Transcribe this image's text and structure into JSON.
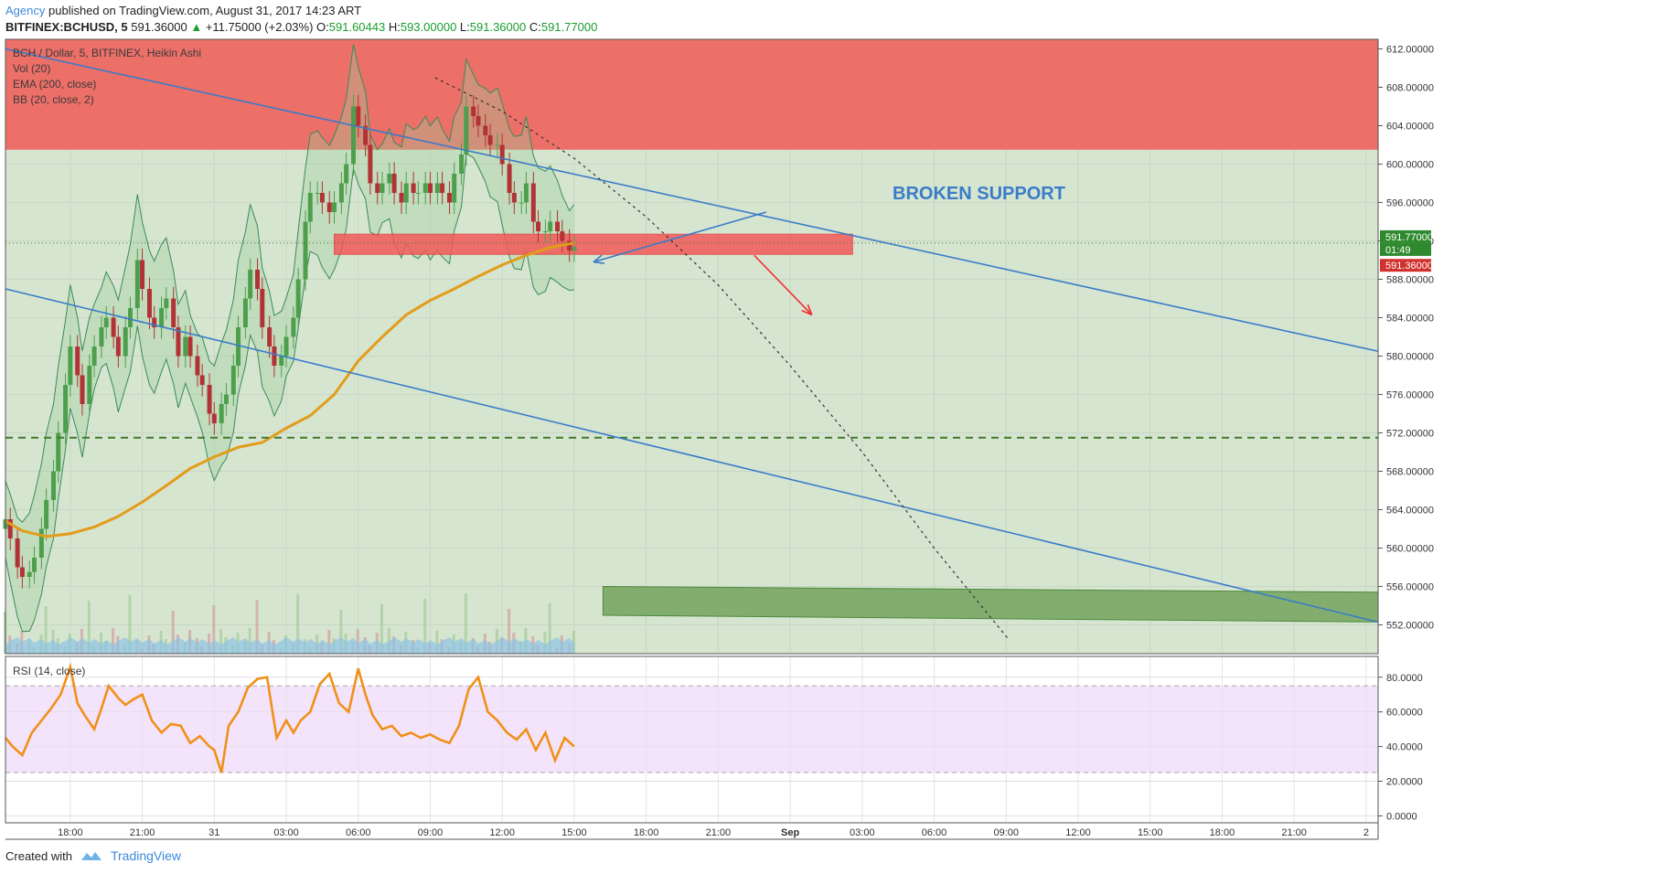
{
  "header": {
    "author": "Agency",
    "published": "published on TradingView.com, August 31, 2017 14:23 ART",
    "symbol": "BITFINEX:BCHUSD, 5",
    "last": "591.36000",
    "change": "+11.75000 (+2.03%)",
    "o_label": "O:",
    "o": "591.60443",
    "h_label": "H:",
    "h": "593.00000",
    "l_label": "L:",
    "l": "591.36000",
    "c_label": "C:",
    "c": "591.77000"
  },
  "legend": [
    "BCH / Dollar, 5, BITFINEX, Heikin Ashi",
    "Vol (20)",
    "EMA (200, close)",
    "BB (20, close, 2)"
  ],
  "rsi_label": "RSI (14, close)",
  "annotation": "BROKEN SUPPORT",
  "price_tags": {
    "close": "591.77000",
    "countdown": "01:49",
    "last": "591.36000"
  },
  "footer": {
    "created_with": "Created with",
    "brand": "TradingView"
  },
  "colors": {
    "resistance_zone": "#ec6f68",
    "support_zone": "#5a9a4a",
    "trendline": "#3a7cc8",
    "ema": "#e39c1a",
    "rsi_line": "#f19019",
    "rsi_band": "#f3e4fb",
    "bull": "#4d9f4d",
    "bear": "#b23236",
    "arrow": "#f32c2c"
  },
  "chart_data": {
    "type": "candlestick",
    "price_axis": {
      "ylim": [
        549.0,
        613.0
      ],
      "ticks": [
        552,
        556,
        560,
        564,
        568,
        572,
        576,
        580,
        584,
        588,
        592,
        596,
        600,
        604,
        608,
        612
      ],
      "tick_labels": [
        "552.00000",
        "556.00000",
        "560.00000",
        "564.00000",
        "568.00000",
        "572.00000",
        "576.00000",
        "580.00000",
        "584.00000",
        "588.00000",
        "592.00000",
        "596.00000",
        "600.00000",
        "604.00000",
        "608.00000",
        "612.00000"
      ]
    },
    "time_axis": {
      "labels": [
        "18:00",
        "21:00",
        "31",
        "03:00",
        "06:00",
        "09:00",
        "12:00",
        "15:00",
        "18:00",
        "21:00",
        "Sep",
        "03:00",
        "06:00",
        "09:00",
        "12:00",
        "15:00",
        "18:00",
        "21:00",
        "2"
      ],
      "hours": [
        18,
        21,
        24,
        27,
        30,
        33,
        36,
        39,
        42,
        45,
        48,
        51,
        54,
        57,
        60,
        63,
        66,
        69,
        72
      ],
      "xlim": [
        15.3,
        72.5
      ]
    },
    "zones": [
      {
        "name": "resistance",
        "x": [
          15.3,
          72.5
        ],
        "y": [
          601.5,
          613.0
        ]
      },
      {
        "name": "broken-support",
        "x": [
          29.0,
          50.6
        ],
        "y": [
          590.6,
          592.7
        ]
      },
      {
        "name": "target",
        "x_start": 40.2,
        "x_end": 72.5,
        "y_top_start": 556.0,
        "y_bot_start": 553.0,
        "y_top_end": 555.4,
        "y_bot_end": 552.3
      }
    ],
    "trendlines": [
      {
        "name": "upper-trendline",
        "from": [
          15.3,
          612.0
        ],
        "to": [
          72.5,
          580.5
        ],
        "dashed": false
      },
      {
        "name": "lower-trendline",
        "from": [
          15.3,
          587.0
        ],
        "to": [
          72.5,
          552.3
        ],
        "dashed": false
      },
      {
        "name": "curve-projection",
        "points": [
          [
            33.2,
            609.0
          ],
          [
            36,
            605.5
          ],
          [
            39,
            600.6
          ],
          [
            42,
            594.5
          ],
          [
            45,
            587.4
          ],
          [
            48,
            579.0
          ],
          [
            51,
            570.0
          ],
          [
            54,
            560.0
          ],
          [
            57.1,
            550.5
          ]
        ],
        "dashed": true
      }
    ],
    "hlines": [
      {
        "name": "support-level",
        "y": 571.5,
        "dashed": true
      },
      {
        "name": "last-price",
        "y": 591.77,
        "dotted": true
      }
    ],
    "arrows": [
      {
        "name": "broken-support-arrow",
        "from": [
          47.0,
          595.0
        ],
        "to": [
          39.8,
          589.8
        ]
      },
      {
        "name": "target-arrow",
        "from": [
          46.5,
          590.5
        ],
        "to": [
          48.9,
          584.3
        ]
      }
    ],
    "series": [
      {
        "name": "Price",
        "x": [
          15.3,
          15.5,
          15.8,
          16.0,
          16.3,
          16.5,
          16.8,
          17.0,
          17.3,
          17.5,
          17.8,
          18.0,
          18.3,
          18.5,
          18.8,
          19.0,
          19.3,
          19.5,
          19.8,
          20.0,
          20.3,
          20.5,
          20.8,
          21.0,
          21.3,
          21.5,
          21.8,
          22.0,
          22.3,
          22.5,
          22.8,
          23.0,
          23.3,
          23.5,
          23.8,
          24.0,
          24.3,
          24.5,
          24.8,
          25.0,
          25.3,
          25.5,
          25.8,
          26.0,
          26.3,
          26.5,
          26.8,
          27.0,
          27.3,
          27.5,
          27.8,
          28.0,
          28.3,
          28.5,
          28.8,
          29.0,
          29.3,
          29.5,
          29.8,
          30.0,
          30.3,
          30.5,
          30.8,
          31.0,
          31.3,
          31.5,
          31.8,
          32.0,
          32.3,
          32.5,
          32.8,
          33.0,
          33.3,
          33.5,
          33.8,
          34.0,
          34.3,
          34.5,
          34.8,
          35.0,
          35.3,
          35.5,
          35.8,
          36.0,
          36.3,
          36.5,
          36.8,
          37.0,
          37.3,
          37.5,
          37.8,
          38.0,
          38.3,
          38.5,
          38.8,
          39.0
        ],
        "values": [
          563.0,
          561.0,
          558.0,
          557.0,
          557.5,
          559.0,
          562.0,
          565.0,
          568.0,
          572.0,
          577.0,
          581.0,
          578.0,
          575.0,
          579.0,
          581.0,
          583.0,
          584.0,
          582.0,
          580.0,
          583.0,
          585.0,
          590.0,
          587.0,
          584.0,
          583.0,
          585.0,
          586.0,
          583.0,
          580.0,
          582.0,
          580.0,
          578.0,
          577.0,
          574.0,
          573.0,
          575.0,
          576.0,
          579.0,
          583.0,
          586.0,
          589.0,
          587.0,
          583.0,
          581.0,
          579.0,
          580.0,
          582.0,
          584.0,
          588.0,
          594.0,
          597.0,
          597.0,
          596.0,
          595.0,
          596.0,
          598.0,
          600.0,
          606.0,
          604.0,
          602.0,
          598.0,
          597.0,
          598.0,
          599.0,
          597.0,
          596.0,
          598.0,
          597.0,
          597.0,
          598.0,
          597.0,
          598.0,
          597.0,
          596.0,
          599.0,
          601.0,
          606.0,
          605.0,
          604.0,
          603.0,
          602.0,
          602.0,
          600.0,
          597.0,
          596.0,
          596.0,
          598.0,
          594.0,
          593.0,
          593.0,
          594.0,
          593.0,
          592.0,
          591.0,
          591.36
        ]
      },
      {
        "name": "EMA (200, close)",
        "x": [
          15.3,
          16.0,
          17.0,
          18.0,
          19.0,
          20.0,
          21.0,
          22.0,
          23.0,
          24.0,
          25.0,
          26.0,
          27.0,
          28.0,
          29.0,
          30.0,
          31.0,
          32.0,
          33.0,
          34.0,
          35.0,
          36.0,
          37.0,
          38.0,
          39.0
        ],
        "values": [
          562.8,
          561.8,
          561.2,
          561.5,
          562.2,
          563.3,
          564.8,
          566.5,
          568.3,
          569.5,
          570.5,
          571.0,
          572.5,
          573.8,
          576.0,
          579.5,
          582.0,
          584.3,
          585.8,
          587.0,
          588.3,
          589.5,
          590.5,
          591.3,
          591.8
        ]
      },
      {
        "name": "RSI (14, close)",
        "x": [
          15.3,
          15.6,
          16.0,
          16.4,
          16.8,
          17.2,
          17.6,
          18.0,
          18.3,
          18.6,
          19.0,
          19.3,
          19.6,
          20.0,
          20.3,
          20.6,
          21.0,
          21.4,
          21.8,
          22.2,
          22.6,
          23.0,
          23.4,
          23.8,
          24.0,
          24.3,
          24.6,
          25.0,
          25.4,
          25.8,
          26.2,
          26.6,
          27.0,
          27.3,
          27.6,
          28.0,
          28.4,
          28.8,
          29.2,
          29.6,
          30.0,
          30.3,
          30.6,
          31.0,
          31.4,
          31.8,
          32.2,
          32.6,
          33.0,
          33.4,
          33.8,
          34.2,
          34.6,
          35.0,
          35.4,
          35.8,
          36.2,
          36.6,
          37.0,
          37.4,
          37.8,
          38.2,
          38.6,
          39.0
        ],
        "values": [
          45,
          40,
          35,
          48,
          55,
          62,
          70,
          86,
          65,
          58,
          50,
          62,
          75,
          68,
          64,
          67,
          70,
          55,
          48,
          53,
          52,
          42,
          46,
          40,
          38,
          25,
          52,
          60,
          74,
          79,
          80,
          45,
          55,
          48,
          55,
          60,
          76,
          82,
          65,
          60,
          85,
          70,
          58,
          50,
          52,
          46,
          48,
          45,
          47,
          44,
          42,
          52,
          73,
          80,
          60,
          55,
          48,
          44,
          50,
          38,
          48,
          32,
          45,
          40
        ]
      }
    ],
    "rsi_axis": {
      "ylim": [
        -4,
        92
      ],
      "ticks": [
        0,
        20,
        40,
        60,
        80
      ],
      "tick_labels": [
        "0.0000",
        "20.0000",
        "40.0000",
        "60.0000",
        "80.0000"
      ],
      "band": [
        25,
        75
      ]
    }
  }
}
